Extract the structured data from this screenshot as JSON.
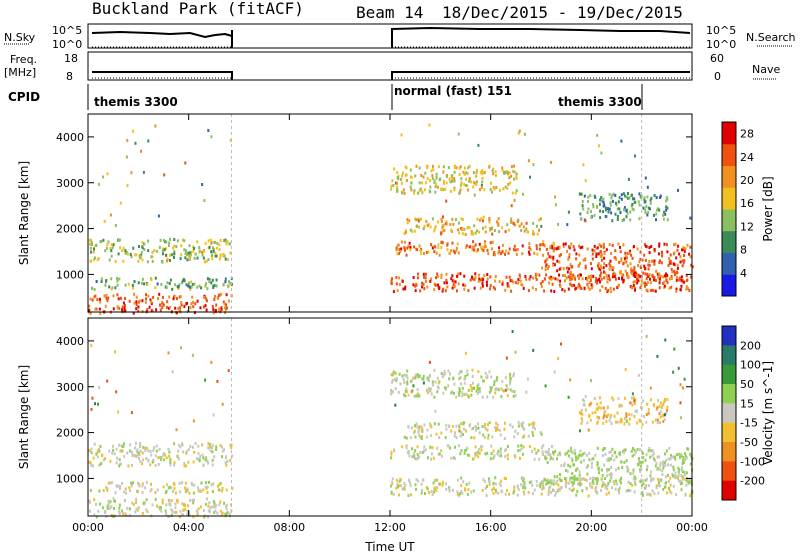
{
  "header": {
    "title": "Buckland Park (fitACF)",
    "beam": "Beam 14",
    "date_range": "18/Dec/2015 - 19/Dec/2015"
  },
  "top_panels": {
    "nsky_label": "N.Sky",
    "nsky_ticks": [
      "10^5",
      "10^0"
    ],
    "nsearch_label": "N.Search",
    "nsearch_ticks": [
      "10^5",
      "10^0"
    ],
    "freq_label_1": "Freq.",
    "freq_label_2": "[MHz]",
    "freq_ticks": [
      "18",
      "8"
    ],
    "nave_label": "Nave",
    "nave_ticks": [
      "60",
      "0"
    ],
    "cpid_label": "CPID",
    "cpid_segments": [
      {
        "name": "themis 3300",
        "start_h": 0,
        "end_h": 5.7
      },
      {
        "name": "normal (fast) 151",
        "start_h": 12,
        "end_h": 22
      },
      {
        "name": "themis 3300",
        "start_h": 22,
        "end_h": 24
      }
    ]
  },
  "chart_data": [
    {
      "type": "heatmap",
      "title": "",
      "xlabel": "Time UT",
      "ylabel": "Slant Range [km]",
      "xticks": [
        "00:00",
        "04:00",
        "08:00",
        "12:00",
        "16:00",
        "20:00",
        "00:00"
      ],
      "xlim_hours": [
        0,
        24
      ],
      "yticks": [
        1000,
        2000,
        3000,
        4000
      ],
      "ylim": [
        180,
        4500
      ],
      "data_gaps_hours": [
        [
          5.7,
          12
        ]
      ],
      "colorbar": {
        "label": "Power [dB]",
        "ticks": [
          4,
          8,
          12,
          16,
          20,
          24,
          28
        ],
        "range": [
          0,
          30
        ],
        "colors": [
          "#1a1ae6",
          "#3060b0",
          "#3a8a5a",
          "#8ac060",
          "#f0c020",
          "#f09020",
          "#f05010",
          "#e00000"
        ]
      },
      "bands": [
        {
          "t_start": 0,
          "t_end": 5.7,
          "range_km": [
            180,
            600
          ],
          "level": 24
        },
        {
          "t_start": 0,
          "t_end": 5.7,
          "range_km": [
            700,
            950
          ],
          "level": 12
        },
        {
          "t_start": 0,
          "t_end": 5.7,
          "range_km": [
            1300,
            1800
          ],
          "level": 14
        },
        {
          "t_start": 12,
          "t_end": 24,
          "range_km": [
            650,
            1050
          ],
          "level": 24
        },
        {
          "t_start": 12,
          "t_end": 18.5,
          "range_km": [
            1450,
            1750
          ],
          "level": 22
        },
        {
          "t_start": 12.5,
          "t_end": 18,
          "range_km": [
            1900,
            2250
          ],
          "level": 18
        },
        {
          "t_start": 18,
          "t_end": 24,
          "range_km": [
            900,
            1700
          ],
          "level": 24
        },
        {
          "t_start": 12,
          "t_end": 17,
          "range_km": [
            2800,
            3400
          ],
          "level": 16
        },
        {
          "t_start": 19.5,
          "t_end": 23,
          "range_km": [
            2200,
            2800
          ],
          "level": 10
        }
      ]
    },
    {
      "type": "heatmap",
      "title": "",
      "xlabel": "Time UT",
      "ylabel": "Slant Range [km]",
      "xticks": [
        "00:00",
        "04:00",
        "08:00",
        "12:00",
        "16:00",
        "20:00",
        "00:00"
      ],
      "xlim_hours": [
        0,
        24
      ],
      "yticks": [
        1000,
        2000,
        3000,
        4000
      ],
      "ylim": [
        180,
        4500
      ],
      "data_gaps_hours": [
        [
          5.7,
          12
        ]
      ],
      "colorbar": {
        "label": "Velocity [m s^-1]",
        "ticks": [
          200,
          100,
          50,
          15,
          -15,
          -50,
          -100,
          -200
        ],
        "colors": [
          "#2030c0",
          "#2a7a6a",
          "#3a9a3a",
          "#90d050",
          "#c8c8c0",
          "#f0c030",
          "#f09020",
          "#f05010",
          "#e00000"
        ]
      },
      "bands": [
        {
          "t_start": 0,
          "t_end": 5.7,
          "range_km": [
            180,
            600
          ],
          "level": 0
        },
        {
          "t_start": 0,
          "t_end": 5.7,
          "range_km": [
            700,
            950
          ],
          "level": 0
        },
        {
          "t_start": 0,
          "t_end": 5.7,
          "range_km": [
            1300,
            1800
          ],
          "level": 0
        },
        {
          "t_start": 12,
          "t_end": 24,
          "range_km": [
            650,
            1050
          ],
          "level": 0
        },
        {
          "t_start": 12,
          "t_end": 18.5,
          "range_km": [
            1450,
            1750
          ],
          "level": 0
        },
        {
          "t_start": 12.5,
          "t_end": 18,
          "range_km": [
            1900,
            2250
          ],
          "level": 0
        },
        {
          "t_start": 18,
          "t_end": 24,
          "range_km": [
            900,
            1700
          ],
          "level": 20
        },
        {
          "t_start": 12,
          "t_end": 17,
          "range_km": [
            2800,
            3400
          ],
          "level": 10
        },
        {
          "t_start": 19.5,
          "t_end": 23,
          "range_km": [
            2200,
            2800
          ],
          "level": -30
        }
      ]
    }
  ]
}
